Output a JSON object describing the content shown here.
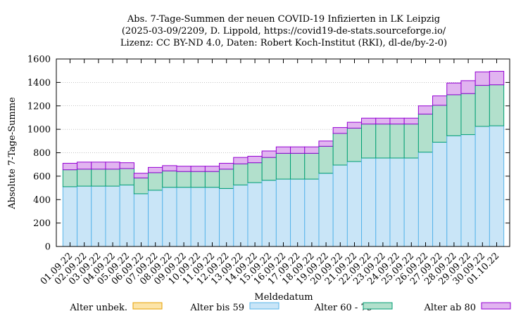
{
  "colors": {
    "unknown": {
      "fill": "#fce4a8",
      "stroke": "#e69f00"
    },
    "under59": {
      "fill": "#c9e5f7",
      "stroke": "#56b4e9"
    },
    "age60_79": {
      "fill": "#b2e0cc",
      "stroke": "#009e73"
    },
    "over80": {
      "fill": "#e1b4f0",
      "stroke": "#9400d3"
    },
    "grid": "#888888"
  },
  "chart_data": {
    "type": "bar",
    "stacked": true,
    "title": [
      "Abs. 7-Tage-Summen der neuen COVID-19 Infizierten in LK Leipzig",
      "(2025-03-09/2209, D. Lippold, https://covid19-de-stats.sourceforge.io/",
      "Lizenz: CC BY-ND 4.0, Daten: Robert Koch-Institut (RKI), dl-de/by-2-0)"
    ],
    "xlabel": "Meldedatum",
    "ylabel": "Absolute 7-Tage-Summe",
    "ylim": [
      0,
      1600
    ],
    "yticks": [
      0,
      200,
      400,
      600,
      800,
      1000,
      1200,
      1400,
      1600
    ],
    "grid": true,
    "legend_position": "bottom",
    "categories": [
      "01.09.22",
      "02.09.22",
      "03.09.22",
      "04.09.22",
      "05.09.22",
      "06.09.22",
      "07.09.22",
      "08.09.22",
      "09.09.22",
      "10.09.22",
      "11.09.22",
      "12.09.22",
      "13.09.22",
      "14.09.22",
      "15.09.22",
      "16.09.22",
      "17.09.22",
      "18.09.22",
      "19.09.22",
      "20.09.22",
      "21.09.22",
      "22.09.22",
      "23.09.22",
      "24.09.22",
      "25.09.22",
      "26.09.22",
      "27.09.22",
      "28.09.22",
      "29.09.22",
      "30.09.22",
      "01.10.22"
    ],
    "series": [
      {
        "name": "Alter unbek.",
        "key": "unknown",
        "values": [
          0,
          0,
          0,
          0,
          0,
          0,
          0,
          0,
          0,
          0,
          0,
          0,
          0,
          0,
          0,
          0,
          0,
          0,
          0,
          0,
          0,
          0,
          0,
          0,
          0,
          0,
          0,
          0,
          0,
          0,
          0
        ]
      },
      {
        "name": "Alter bis 59",
        "key": "under59",
        "values": [
          510,
          515,
          515,
          515,
          525,
          450,
          480,
          505,
          505,
          505,
          505,
          495,
          525,
          545,
          565,
          575,
          575,
          575,
          625,
          695,
          725,
          755,
          755,
          755,
          755,
          805,
          890,
          945,
          955,
          1025,
          1030
        ]
      },
      {
        "name": "Alter 60 - 79",
        "key": "age60_79",
        "values": [
          145,
          145,
          145,
          145,
          140,
          135,
          150,
          140,
          135,
          135,
          135,
          165,
          180,
          170,
          195,
          220,
          220,
          220,
          230,
          270,
          285,
          290,
          290,
          290,
          290,
          325,
          315,
          350,
          350,
          350,
          350
        ]
      },
      {
        "name": "Alter ab 80",
        "key": "over80",
        "values": [
          55,
          60,
          60,
          60,
          50,
          40,
          45,
          45,
          45,
          45,
          45,
          50,
          55,
          55,
          55,
          55,
          55,
          55,
          45,
          50,
          50,
          50,
          50,
          50,
          50,
          70,
          80,
          100,
          110,
          115,
          115
        ]
      }
    ]
  }
}
